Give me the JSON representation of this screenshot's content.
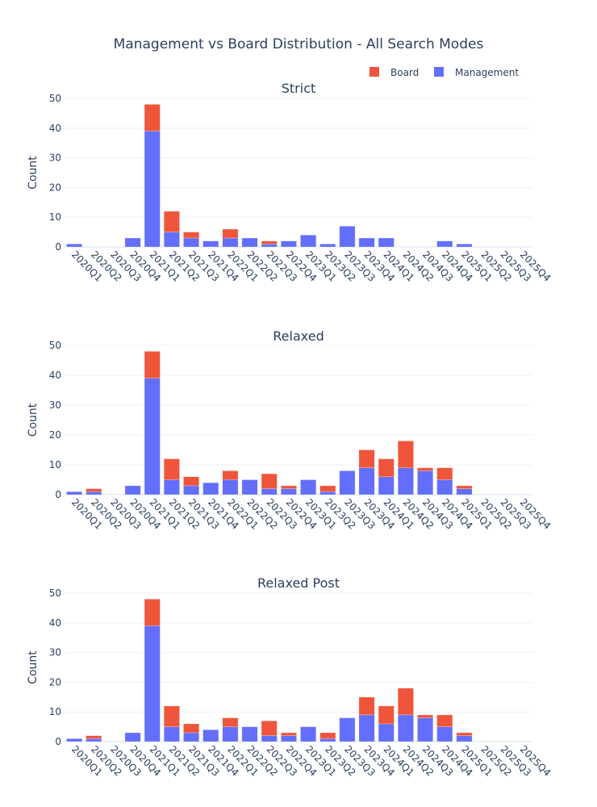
{
  "title": "Management vs Board Distribution - All Search Modes",
  "legend": {
    "items": [
      {
        "name": "Board",
        "color": "#EF553B"
      },
      {
        "name": "Management",
        "color": "#636EFA"
      }
    ]
  },
  "chart_data": [
    {
      "type": "bar",
      "stacked": true,
      "title": "Strict",
      "xlabel": "",
      "ylabel": "Count",
      "ylim": [
        0,
        50
      ],
      "yticks": [
        0,
        10,
        20,
        30,
        40,
        50
      ],
      "grid": true,
      "legend_position": "top-right",
      "categories": [
        "2020Q1",
        "2020Q2",
        "2020Q3",
        "2020Q4",
        "2021Q1",
        "2021Q2",
        "2021Q3",
        "2021Q4",
        "2022Q1",
        "2022Q2",
        "2022Q3",
        "2022Q4",
        "2023Q1",
        "2023Q2",
        "2023Q3",
        "2023Q4",
        "2024Q1",
        "2024Q2",
        "2024Q3",
        "2024Q4",
        "2025Q1",
        "2025Q2",
        "2025Q3",
        "2025Q4"
      ],
      "series": [
        {
          "name": "Management",
          "color": "#636EFA",
          "values": [
            1,
            0,
            0,
            3,
            39,
            5,
            3,
            2,
            3,
            3,
            1,
            2,
            4,
            1,
            7,
            3,
            3,
            0,
            0,
            2,
            1,
            0,
            0,
            0
          ]
        },
        {
          "name": "Board",
          "color": "#EF553B",
          "values": [
            0,
            0,
            0,
            0,
            9,
            7,
            2,
            0,
            3,
            0,
            1,
            0,
            0,
            0,
            0,
            0,
            0,
            0,
            0,
            0,
            0,
            0,
            0,
            0
          ]
        }
      ]
    },
    {
      "type": "bar",
      "stacked": true,
      "title": "Relaxed",
      "xlabel": "",
      "ylabel": "Count",
      "ylim": [
        0,
        50
      ],
      "yticks": [
        0,
        10,
        20,
        30,
        40,
        50
      ],
      "grid": true,
      "categories": [
        "2020Q1",
        "2020Q2",
        "2020Q3",
        "2020Q4",
        "2021Q1",
        "2021Q2",
        "2021Q3",
        "2021Q4",
        "2022Q1",
        "2022Q2",
        "2022Q3",
        "2022Q4",
        "2023Q1",
        "2023Q2",
        "2023Q3",
        "2023Q4",
        "2024Q1",
        "2024Q2",
        "2024Q3",
        "2024Q4",
        "2025Q1",
        "2025Q2",
        "2025Q3",
        "2025Q4"
      ],
      "series": [
        {
          "name": "Management",
          "color": "#636EFA",
          "values": [
            1,
            1,
            0,
            3,
            39,
            5,
            3,
            4,
            5,
            5,
            2,
            2,
            5,
            1,
            8,
            9,
            6,
            9,
            8,
            5,
            2,
            0,
            0,
            0
          ]
        },
        {
          "name": "Board",
          "color": "#EF553B",
          "values": [
            0,
            1,
            0,
            0,
            9,
            7,
            3,
            0,
            3,
            0,
            5,
            1,
            0,
            2,
            0,
            6,
            6,
            9,
            1,
            4,
            1,
            0,
            0,
            0
          ]
        }
      ]
    },
    {
      "type": "bar",
      "stacked": true,
      "title": "Relaxed Post",
      "xlabel": "",
      "ylabel": "Count",
      "ylim": [
        0,
        50
      ],
      "yticks": [
        0,
        10,
        20,
        30,
        40,
        50
      ],
      "grid": true,
      "categories": [
        "2020Q1",
        "2020Q2",
        "2020Q3",
        "2020Q4",
        "2021Q1",
        "2021Q2",
        "2021Q3",
        "2021Q4",
        "2022Q1",
        "2022Q2",
        "2022Q3",
        "2022Q4",
        "2023Q1",
        "2023Q2",
        "2023Q3",
        "2023Q4",
        "2024Q1",
        "2024Q2",
        "2024Q3",
        "2024Q4",
        "2025Q1",
        "2025Q2",
        "2025Q3",
        "2025Q4"
      ],
      "series": [
        {
          "name": "Management",
          "color": "#636EFA",
          "values": [
            1,
            1,
            0,
            3,
            39,
            5,
            3,
            4,
            5,
            5,
            2,
            2,
            5,
            1,
            8,
            9,
            6,
            9,
            8,
            5,
            2,
            0,
            0,
            0
          ]
        },
        {
          "name": "Board",
          "color": "#EF553B",
          "values": [
            0,
            1,
            0,
            0,
            9,
            7,
            3,
            0,
            3,
            0,
            5,
            1,
            0,
            2,
            0,
            6,
            6,
            9,
            1,
            4,
            1,
            0,
            0,
            0
          ]
        }
      ]
    }
  ]
}
